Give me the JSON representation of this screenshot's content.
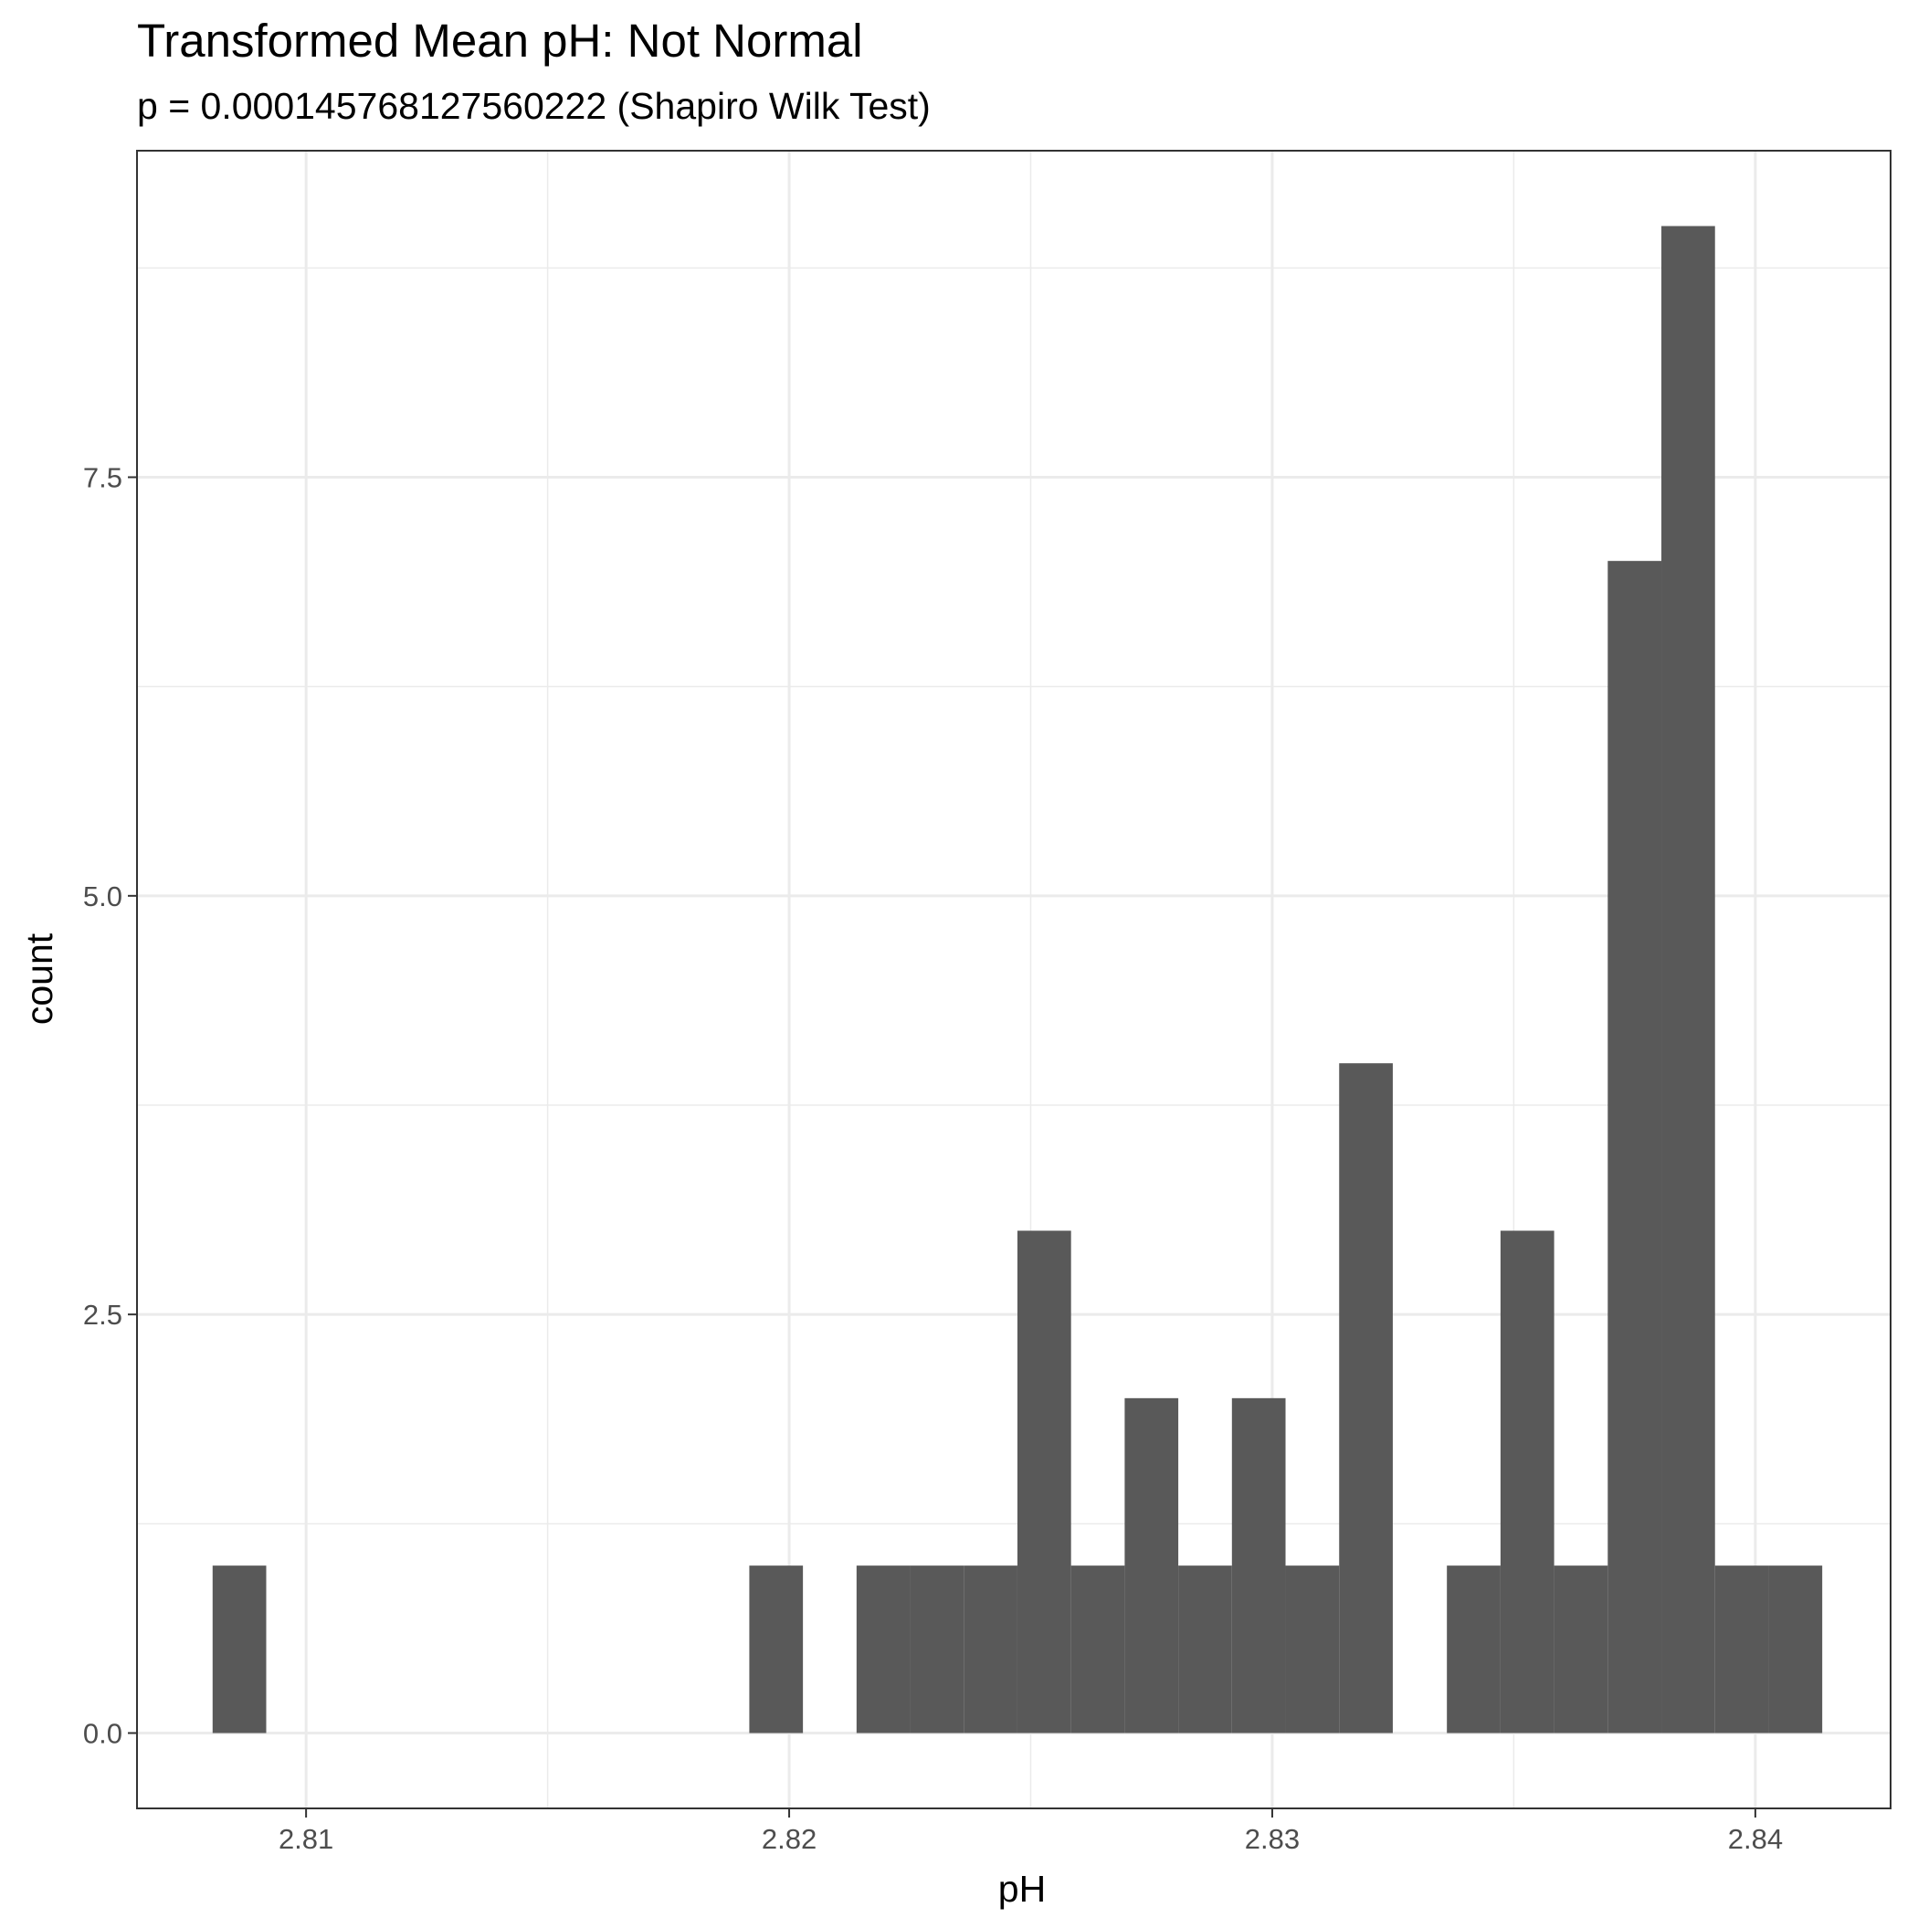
{
  "chart_data": {
    "type": "bar",
    "title": "Transformed Mean pH: Not Normal",
    "subtitle": "p = 0.000145768127560222 (Shapiro Wilk Test)",
    "xlabel": "pH",
    "ylabel": "count",
    "xlim": [
      2.8065,
      2.8428
    ],
    "ylim": [
      -0.45,
      9.45
    ],
    "grid": true,
    "x_major_ticks": [
      2.81,
      2.82,
      2.83,
      2.84
    ],
    "x_tick_labels": [
      "2.81",
      "2.82",
      "2.83",
      "2.84"
    ],
    "x_minor_ticks": [
      2.815,
      2.825,
      2.835
    ],
    "y_major_ticks": [
      0,
      2.5,
      5,
      7.5
    ],
    "y_tick_labels": [
      "0.0",
      "2.5",
      "5.0",
      "7.5"
    ],
    "y_minor_ticks": [
      1.25,
      3.75,
      6.25,
      8.75
    ],
    "bin_width": 0.00111,
    "bin_centers": [
      2.80862,
      2.81973,
      2.82195,
      2.82306,
      2.82417,
      2.82528,
      2.82639,
      2.8275,
      2.82861,
      2.82972,
      2.83083,
      2.83194,
      2.83417,
      2.83528,
      2.83639,
      2.8375,
      2.83861,
      2.83972,
      2.84083
    ],
    "values": [
      1,
      1,
      1,
      1,
      1,
      3,
      1,
      2,
      1,
      2,
      1,
      4,
      1,
      3,
      1,
      7,
      9,
      1,
      1
    ],
    "bar_color": "#595959"
  }
}
